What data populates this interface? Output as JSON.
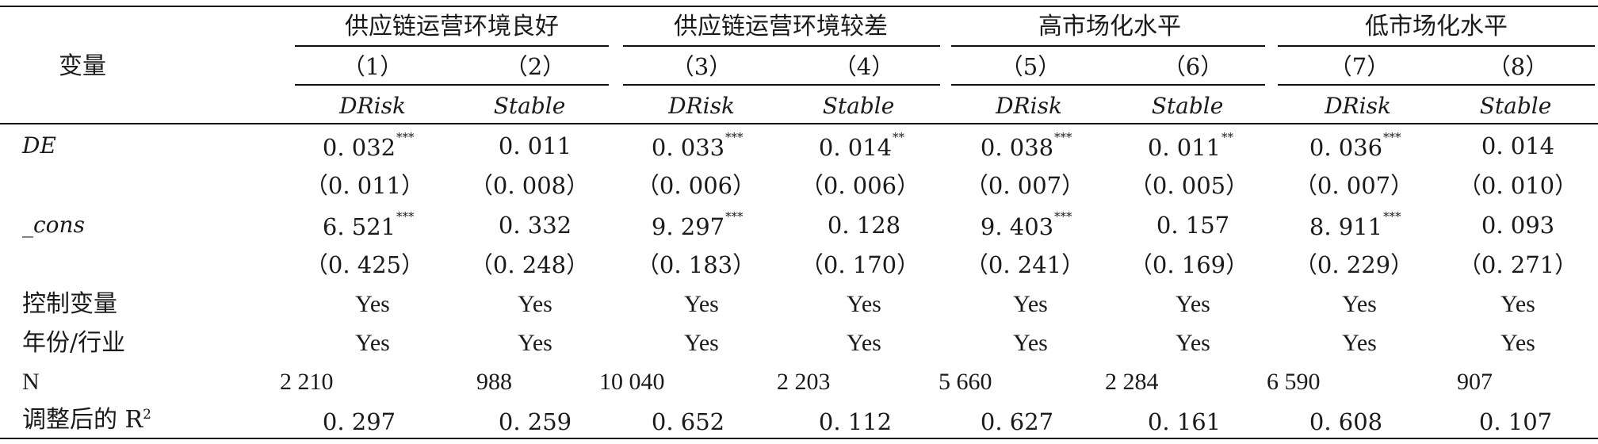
{
  "header": {
    "var_label": "变量",
    "groups": [
      "供应链运营环境良好",
      "供应链运营环境较差",
      "高市场化水平",
      "低市场化水平"
    ],
    "col_nums": [
      "（1）",
      "（2）",
      "（3）",
      "（4）",
      "（5）",
      "（6）",
      "（7）",
      "（8）"
    ],
    "dep_vars": [
      "DRisk",
      "Stable",
      "DRisk",
      "Stable",
      "DRisk",
      "Stable",
      "DRisk",
      "Stable"
    ]
  },
  "rows": {
    "de": {
      "label": "DE",
      "coef": [
        "0. 032",
        "0. 011",
        "0. 033",
        "0. 014",
        "0. 038",
        "0. 011",
        "0. 036",
        "0. 014"
      ],
      "sig": [
        "***",
        "",
        "***",
        "**",
        "***",
        "**",
        "***",
        ""
      ],
      "se": [
        "（0. 011）",
        "（0. 008）",
        "（0. 006）",
        "（0. 006）",
        "（0. 007）",
        "（0. 005）",
        "（0. 007）",
        "（0. 010）"
      ]
    },
    "cons": {
      "label": "_cons",
      "coef": [
        "6. 521",
        "0. 332",
        "9. 297",
        "0. 128",
        "9. 403",
        "0. 157",
        "8. 911",
        "0. 093"
      ],
      "sig": [
        "***",
        "",
        "***",
        "",
        "***",
        "",
        "***",
        ""
      ],
      "se": [
        "（0. 425）",
        "（0. 248）",
        "（0. 183）",
        "（0. 170）",
        "（0. 241）",
        "（0. 169）",
        "（0. 229）",
        "（0. 271）"
      ]
    },
    "controls": {
      "label": "控制变量",
      "values": [
        "Yes",
        "Yes",
        "Yes",
        "Yes",
        "Yes",
        "Yes",
        "Yes",
        "Yes"
      ]
    },
    "year_ind": {
      "label": "年份/行业",
      "values": [
        "Yes",
        "Yes",
        "Yes",
        "Yes",
        "Yes",
        "Yes",
        "Yes",
        "Yes"
      ]
    },
    "n": {
      "label": "N",
      "values": [
        "2 210",
        "988",
        "10 040",
        "2 203",
        "5 660",
        "2 284",
        "6 590",
        "907"
      ]
    },
    "r2": {
      "label": "调整后的 R",
      "label_sup": "2",
      "values": [
        "0. 297",
        "0. 259",
        "0. 652",
        "0. 112",
        "0. 627",
        "0. 161",
        "0. 608",
        "0. 107"
      ]
    }
  }
}
